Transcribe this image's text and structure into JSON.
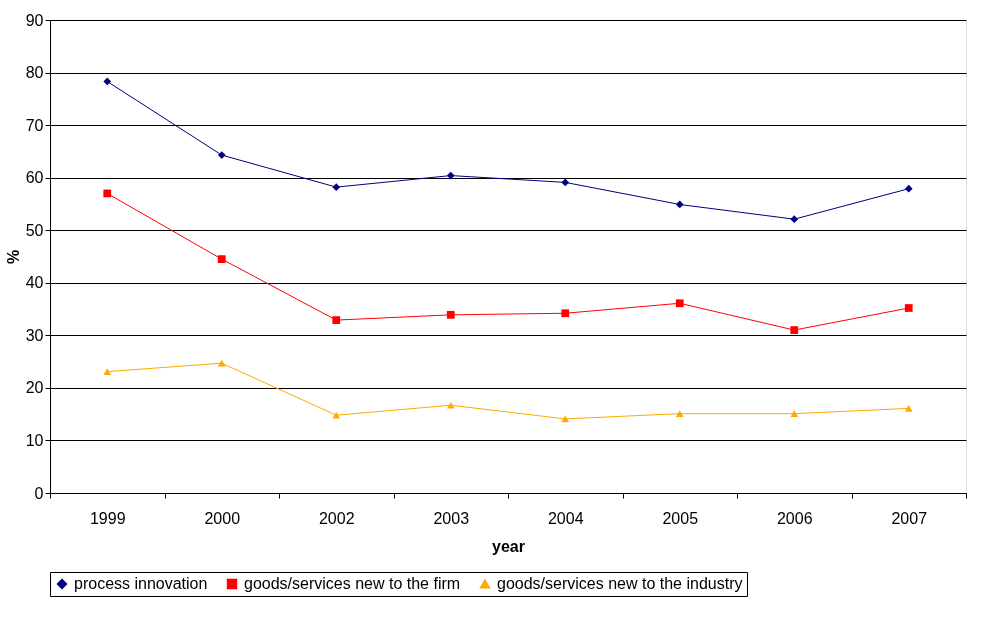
{
  "chart_data": {
    "type": "line",
    "xlabel": "year",
    "ylabel": "%",
    "categories": [
      "1999",
      "2000",
      "2002",
      "2003",
      "2004",
      "2005",
      "2006",
      "2007"
    ],
    "series": [
      {
        "name": "process innovation",
        "color": "#000080",
        "marker": "diamond",
        "values": [
          78.3,
          64.3,
          58.2,
          60.4,
          59.1,
          54.9,
          52.1,
          57.9
        ]
      },
      {
        "name": "goods/services new to the firm",
        "color": "#ff0000",
        "marker": "square",
        "values": [
          57.0,
          44.5,
          32.9,
          33.9,
          34.2,
          36.1,
          31.0,
          35.2
        ]
      },
      {
        "name": "goods/services new to the industry",
        "color": "#ffaa00",
        "marker": "triangle",
        "values": [
          23.1,
          24.7,
          14.8,
          16.7,
          14.1,
          15.1,
          15.1,
          16.1
        ]
      }
    ],
    "ylim": [
      0,
      90
    ],
    "yticks": [
      0,
      10,
      20,
      30,
      40,
      50,
      60,
      70,
      80,
      90
    ],
    "grid": "y",
    "legend": "bottom",
    "line_style": "solid"
  }
}
